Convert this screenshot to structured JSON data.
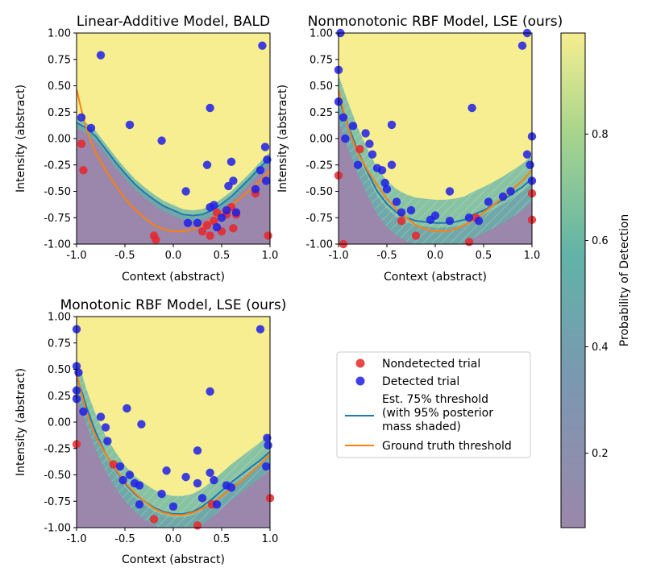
{
  "chart_data": [
    {
      "type": "scatter",
      "title": "Linear-Additive Model, BALD",
      "xlabel": "Context (abstract)",
      "ylabel": "Intensity (abstract)",
      "xlim": [
        -1.0,
        1.0
      ],
      "ylim": [
        -1.0,
        1.0
      ],
      "xticks": [
        "-1.0",
        "-0.5",
        "0.0",
        "0.5",
        "1.0"
      ],
      "yticks": [
        "1.00",
        "0.75",
        "0.50",
        "0.25",
        "0.00",
        "-0.25",
        "-0.50",
        "-0.75",
        "-1.00"
      ],
      "detected": [
        [
          -0.95,
          0.2
        ],
        [
          -0.85,
          0.1
        ],
        [
          -0.75,
          0.79
        ],
        [
          -0.45,
          0.13
        ],
        [
          -0.12,
          -0.02
        ],
        [
          0.13,
          -0.5
        ],
        [
          0.15,
          -0.8
        ],
        [
          0.25,
          -0.8
        ],
        [
          0.35,
          -0.25
        ],
        [
          0.38,
          0.29
        ],
        [
          0.38,
          -0.65
        ],
        [
          0.42,
          -0.63
        ],
        [
          0.45,
          -0.84
        ],
        [
          0.5,
          -0.75
        ],
        [
          0.55,
          -0.68
        ],
        [
          0.57,
          -0.45
        ],
        [
          0.6,
          -0.22
        ],
        [
          0.62,
          -0.4
        ],
        [
          0.65,
          -0.7
        ],
        [
          0.85,
          -0.48
        ],
        [
          0.9,
          -0.3
        ],
        [
          0.92,
          0.88
        ],
        [
          0.95,
          -0.08
        ],
        [
          0.97,
          -0.2
        ],
        [
          0.96,
          -0.4
        ]
      ],
      "nondetected": [
        [
          -0.95,
          -0.05
        ],
        [
          -0.93,
          -0.3
        ],
        [
          -0.2,
          -0.92
        ],
        [
          -0.18,
          -0.96
        ],
        [
          0.3,
          -0.88
        ],
        [
          0.35,
          -0.82
        ],
        [
          0.38,
          -0.92
        ],
        [
          0.42,
          -0.78
        ],
        [
          0.45,
          -0.7
        ],
        [
          0.5,
          -0.88
        ],
        [
          0.55,
          -0.72
        ],
        [
          0.6,
          -0.65
        ],
        [
          0.62,
          -0.85
        ],
        [
          0.65,
          -0.72
        ],
        [
          0.85,
          -0.52
        ],
        [
          0.98,
          -0.92
        ]
      ],
      "estimate": [
        [
          -1.0,
          0.15
        ],
        [
          -0.9,
          0.1
        ],
        [
          -0.8,
          0.02
        ],
        [
          -0.7,
          -0.1
        ],
        [
          -0.6,
          -0.22
        ],
        [
          -0.5,
          -0.33
        ],
        [
          -0.4,
          -0.43
        ],
        [
          -0.3,
          -0.51
        ],
        [
          -0.2,
          -0.58
        ],
        [
          -0.1,
          -0.64
        ],
        [
          0.0,
          -0.68
        ],
        [
          0.1,
          -0.72
        ],
        [
          0.2,
          -0.73
        ],
        [
          0.3,
          -0.72
        ],
        [
          0.4,
          -0.68
        ],
        [
          0.5,
          -0.62
        ],
        [
          0.6,
          -0.55
        ],
        [
          0.7,
          -0.46
        ],
        [
          0.8,
          -0.37
        ],
        [
          0.9,
          -0.27
        ],
        [
          1.0,
          -0.18
        ]
      ],
      "ground_truth": [
        [
          -1.0,
          0.47
        ],
        [
          -0.95,
          0.27
        ],
        [
          -0.9,
          0.1
        ],
        [
          -0.85,
          -0.03
        ],
        [
          -0.8,
          -0.14
        ],
        [
          -0.7,
          -0.3
        ],
        [
          -0.6,
          -0.44
        ],
        [
          -0.5,
          -0.57
        ],
        [
          -0.4,
          -0.67
        ],
        [
          -0.3,
          -0.75
        ],
        [
          -0.2,
          -0.82
        ],
        [
          -0.1,
          -0.86
        ],
        [
          0.0,
          -0.88
        ],
        [
          0.1,
          -0.88
        ],
        [
          0.2,
          -0.86
        ],
        [
          0.3,
          -0.82
        ],
        [
          0.4,
          -0.77
        ],
        [
          0.5,
          -0.7
        ],
        [
          0.6,
          -0.63
        ],
        [
          0.7,
          -0.56
        ],
        [
          0.8,
          -0.48
        ],
        [
          0.9,
          -0.4
        ],
        [
          1.0,
          -0.3
        ]
      ]
    },
    {
      "type": "scatter",
      "title": "Nonmonotonic RBF Model, LSE (ours)",
      "xlabel": "Context (abstract)",
      "ylabel": "Intensity (abstract)",
      "xlim": [
        -1.0,
        1.0
      ],
      "ylim": [
        -1.0,
        1.0
      ],
      "xticks": [
        "-1.0",
        "-0.5",
        "0.0",
        "0.5",
        "1.0"
      ],
      "yticks": [
        "1.00",
        "0.75",
        "0.50",
        "0.25",
        "0.00",
        "-0.25",
        "-0.50",
        "-0.75",
        "-1.00"
      ],
      "detected": [
        [
          -1.0,
          0.65
        ],
        [
          -1.0,
          0.35
        ],
        [
          -0.98,
          1.0
        ],
        [
          -0.95,
          0.2
        ],
        [
          -0.93,
          0.0
        ],
        [
          -0.85,
          0.12
        ],
        [
          -0.8,
          -0.25
        ],
        [
          -0.72,
          0.05
        ],
        [
          -0.68,
          -0.05
        ],
        [
          -0.65,
          -0.15
        ],
        [
          -0.6,
          -0.28
        ],
        [
          -0.55,
          -0.3
        ],
        [
          -0.52,
          -0.42
        ],
        [
          -0.5,
          -0.48
        ],
        [
          -0.45,
          -0.25
        ],
        [
          -0.45,
          0.13
        ],
        [
          -0.4,
          -0.6
        ],
        [
          -0.35,
          -0.7
        ],
        [
          -0.25,
          -0.68
        ],
        [
          -0.05,
          -0.77
        ],
        [
          0.0,
          -0.73
        ],
        [
          0.15,
          -0.5
        ],
        [
          0.15,
          -0.78
        ],
        [
          0.35,
          -0.75
        ],
        [
          0.38,
          0.29
        ],
        [
          0.45,
          -0.78
        ],
        [
          0.55,
          -0.6
        ],
        [
          0.7,
          -0.55
        ],
        [
          0.78,
          -0.5
        ],
        [
          0.9,
          0.88
        ],
        [
          0.95,
          -0.15
        ],
        [
          0.95,
          1.0
        ],
        [
          0.98,
          -0.25
        ],
        [
          1.0,
          0.02
        ],
        [
          1.0,
          -0.4
        ]
      ],
      "nondetected": [
        [
          -1.0,
          -0.35
        ],
        [
          -0.95,
          -1.0
        ],
        [
          -0.78,
          -0.1
        ],
        [
          -0.35,
          -0.78
        ],
        [
          -0.2,
          -0.92
        ],
        [
          0.35,
          -0.98
        ],
        [
          0.42,
          -0.75
        ],
        [
          1.0,
          -0.52
        ],
        [
          1.0,
          -0.77
        ]
      ],
      "estimate": [
        [
          -1.0,
          0.38
        ],
        [
          -0.95,
          0.25
        ],
        [
          -0.9,
          0.12
        ],
        [
          -0.85,
          0.0
        ],
        [
          -0.8,
          -0.12
        ],
        [
          -0.7,
          -0.32
        ],
        [
          -0.6,
          -0.5
        ],
        [
          -0.5,
          -0.62
        ],
        [
          -0.4,
          -0.7
        ],
        [
          -0.3,
          -0.75
        ],
        [
          -0.2,
          -0.78
        ],
        [
          -0.1,
          -0.79
        ],
        [
          0.0,
          -0.8
        ],
        [
          0.1,
          -0.8
        ],
        [
          0.2,
          -0.79
        ],
        [
          0.3,
          -0.77
        ],
        [
          0.4,
          -0.72
        ],
        [
          0.5,
          -0.68
        ],
        [
          0.6,
          -0.63
        ],
        [
          0.7,
          -0.58
        ],
        [
          0.8,
          -0.52
        ],
        [
          0.9,
          -0.46
        ],
        [
          1.0,
          -0.38
        ]
      ],
      "ground_truth": [
        [
          -1.0,
          0.47
        ],
        [
          -0.95,
          0.27
        ],
        [
          -0.9,
          0.1
        ],
        [
          -0.85,
          -0.03
        ],
        [
          -0.8,
          -0.14
        ],
        [
          -0.7,
          -0.3
        ],
        [
          -0.6,
          -0.44
        ],
        [
          -0.5,
          -0.57
        ],
        [
          -0.4,
          -0.67
        ],
        [
          -0.3,
          -0.75
        ],
        [
          -0.2,
          -0.82
        ],
        [
          -0.1,
          -0.86
        ],
        [
          0.0,
          -0.88
        ],
        [
          0.1,
          -0.88
        ],
        [
          0.2,
          -0.86
        ],
        [
          0.3,
          -0.82
        ],
        [
          0.4,
          -0.77
        ],
        [
          0.5,
          -0.7
        ],
        [
          0.6,
          -0.63
        ],
        [
          0.7,
          -0.56
        ],
        [
          0.8,
          -0.48
        ],
        [
          0.9,
          -0.4
        ],
        [
          1.0,
          -0.3
        ]
      ]
    },
    {
      "type": "scatter",
      "title": "Monotonic RBF Model, LSE (ours)",
      "xlabel": "Context (abstract)",
      "ylabel": "Intensity (abstract)",
      "xlim": [
        -1.0,
        1.0
      ],
      "ylim": [
        -1.0,
        1.0
      ],
      "xticks": [
        "-1.0",
        "-0.5",
        "0.0",
        "0.5",
        "1.0"
      ],
      "yticks": [
        "1.00",
        "0.75",
        "0.50",
        "0.25",
        "0.00",
        "-0.25",
        "-0.50",
        "-0.75",
        "-1.00"
      ],
      "detected": [
        [
          -1.0,
          0.88
        ],
        [
          -1.0,
          0.53
        ],
        [
          -0.98,
          0.47
        ],
        [
          -1.0,
          0.3
        ],
        [
          -1.0,
          0.22
        ],
        [
          -0.93,
          0.1
        ],
        [
          -0.75,
          0.05
        ],
        [
          -0.7,
          -0.05
        ],
        [
          -0.68,
          -0.18
        ],
        [
          -0.55,
          -0.42
        ],
        [
          -0.52,
          -0.55
        ],
        [
          -0.48,
          0.13
        ],
        [
          -0.45,
          -0.5
        ],
        [
          -0.4,
          -0.58
        ],
        [
          -0.35,
          -0.6
        ],
        [
          -0.35,
          -0.78
        ],
        [
          -0.33,
          -0.02
        ],
        [
          -0.12,
          -0.68
        ],
        [
          -0.07,
          -0.46
        ],
        [
          0.0,
          -0.8
        ],
        [
          0.13,
          -0.52
        ],
        [
          0.25,
          -0.27
        ],
        [
          0.25,
          -0.58
        ],
        [
          0.3,
          -0.72
        ],
        [
          0.38,
          -0.48
        ],
        [
          0.38,
          0.29
        ],
        [
          0.42,
          -0.55
        ],
        [
          0.45,
          -0.78
        ],
        [
          0.55,
          -0.6
        ],
        [
          0.6,
          -0.62
        ],
        [
          0.9,
          0.88
        ],
        [
          0.97,
          -0.15
        ],
        [
          0.98,
          -0.22
        ],
        [
          0.96,
          -0.42
        ]
      ],
      "nondetected": [
        [
          -1.0,
          -0.21
        ],
        [
          -0.62,
          -0.4
        ],
        [
          -0.2,
          -0.92
        ],
        [
          0.25,
          -0.98
        ],
        [
          0.4,
          -0.78
        ],
        [
          1.0,
          -0.72
        ]
      ],
      "estimate": [
        [
          -1.0,
          0.42
        ],
        [
          -0.95,
          0.3
        ],
        [
          -0.9,
          0.15
        ],
        [
          -0.85,
          0.02
        ],
        [
          -0.8,
          -0.1
        ],
        [
          -0.7,
          -0.3
        ],
        [
          -0.6,
          -0.45
        ],
        [
          -0.5,
          -0.58
        ],
        [
          -0.4,
          -0.68
        ],
        [
          -0.3,
          -0.75
        ],
        [
          -0.2,
          -0.81
        ],
        [
          -0.1,
          -0.85
        ],
        [
          0.0,
          -0.87
        ],
        [
          0.1,
          -0.87
        ],
        [
          0.2,
          -0.85
        ],
        [
          0.3,
          -0.8
        ],
        [
          0.4,
          -0.73
        ],
        [
          0.5,
          -0.65
        ],
        [
          0.6,
          -0.57
        ],
        [
          0.7,
          -0.5
        ],
        [
          0.8,
          -0.43
        ],
        [
          0.9,
          -0.36
        ],
        [
          1.0,
          -0.28
        ]
      ],
      "ground_truth": [
        [
          -1.0,
          0.47
        ],
        [
          -0.95,
          0.27
        ],
        [
          -0.9,
          0.1
        ],
        [
          -0.85,
          -0.03
        ],
        [
          -0.8,
          -0.14
        ],
        [
          -0.7,
          -0.3
        ],
        [
          -0.6,
          -0.44
        ],
        [
          -0.5,
          -0.57
        ],
        [
          -0.4,
          -0.67
        ],
        [
          -0.3,
          -0.75
        ],
        [
          -0.2,
          -0.82
        ],
        [
          -0.1,
          -0.86
        ],
        [
          0.0,
          -0.88
        ],
        [
          0.1,
          -0.88
        ],
        [
          0.2,
          -0.86
        ],
        [
          0.3,
          -0.82
        ],
        [
          0.4,
          -0.77
        ],
        [
          0.5,
          -0.7
        ],
        [
          0.6,
          -0.63
        ],
        [
          0.7,
          -0.56
        ],
        [
          0.8,
          -0.48
        ],
        [
          0.9,
          -0.4
        ],
        [
          1.0,
          -0.3
        ]
      ]
    }
  ],
  "legend": {
    "items": [
      {
        "label": "Nondetected trial",
        "kind": "marker",
        "color": "#e8262b"
      },
      {
        "label": "Detected trial",
        "kind": "marker",
        "color": "#1f1fe8"
      },
      {
        "label": "Est. 75% threshold",
        "line2": "(with 95% posterior",
        "line3": "mass shaded)",
        "kind": "line",
        "color": "#1f77b4"
      },
      {
        "label": "Ground truth threshold",
        "kind": "line",
        "color": "#ff7f0e"
      }
    ]
  },
  "colorbar": {
    "label": "Probability of Detection",
    "range": [
      0.06,
      0.99
    ],
    "ticks": [
      "0.2",
      "0.4",
      "0.6",
      "0.8"
    ],
    "tick_values": [
      0.2,
      0.4,
      0.6,
      0.8
    ]
  },
  "colors": {
    "low": "#9b87ab",
    "mid": "#61b3a8",
    "high": "#f6ee91",
    "detected": "#1f1fe8",
    "nondetected": "#e8262b",
    "estimate": "#1f77b4",
    "ground_truth": "#ff7f0e"
  }
}
